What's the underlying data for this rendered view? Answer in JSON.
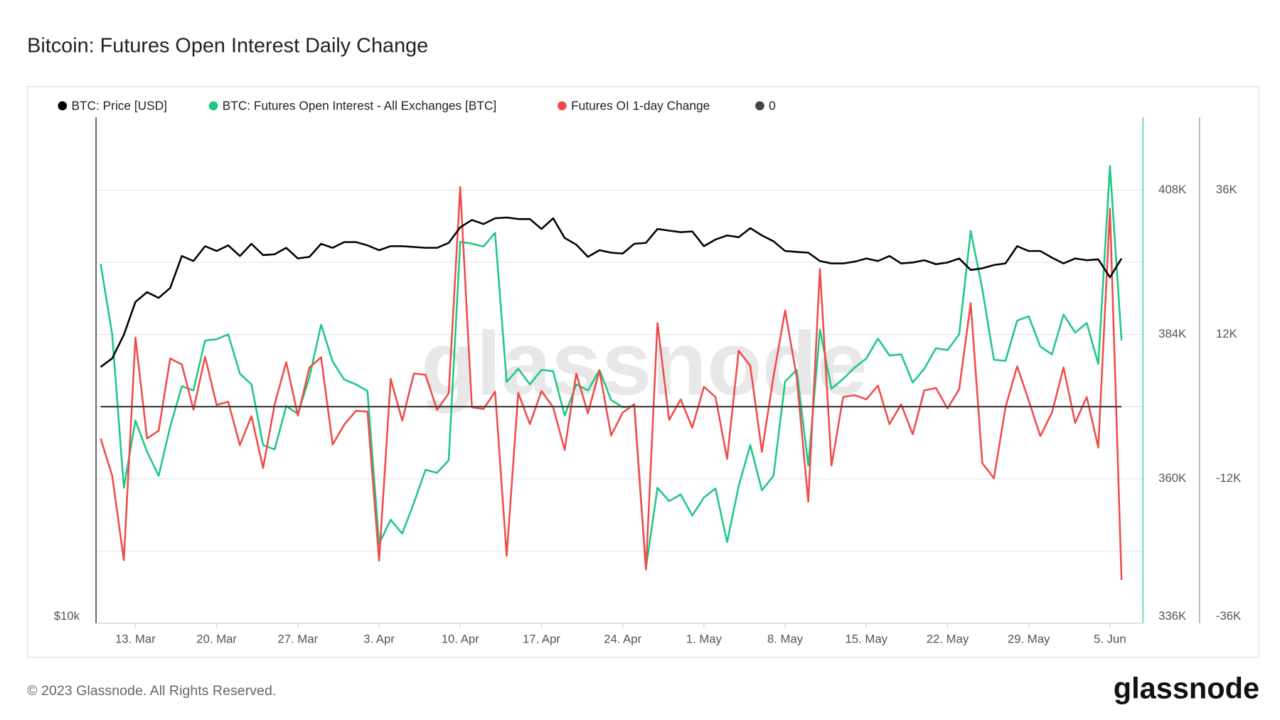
{
  "chart_data": {
    "type": "line",
    "title": "Bitcoin: Futures Open Interest Daily Change",
    "watermark": "glassnode",
    "footer": "© 2023 Glassnode. All Rights Reserved.",
    "brand": "glassnode",
    "categories": [
      null,
      null,
      null,
      "13. Mar",
      null,
      null,
      null,
      null,
      null,
      null,
      "20. Mar",
      null,
      null,
      null,
      null,
      null,
      null,
      "27. Mar",
      null,
      null,
      null,
      null,
      null,
      null,
      "3. Apr",
      null,
      null,
      null,
      null,
      null,
      null,
      "10. Apr",
      null,
      null,
      null,
      null,
      null,
      null,
      "17. Apr",
      null,
      null,
      null,
      null,
      null,
      null,
      "24. Apr",
      null,
      null,
      null,
      null,
      null,
      null,
      "1. May",
      null,
      null,
      null,
      null,
      null,
      null,
      "8. May",
      null,
      null,
      null,
      null,
      null,
      null,
      "15. May",
      null,
      null,
      null,
      null,
      null,
      null,
      "22. May",
      null,
      null,
      null,
      null,
      null,
      null,
      "29. May",
      null,
      null,
      null,
      null,
      null,
      null,
      "5. Jun",
      null
    ],
    "ylim": [
      10000,
      39300
    ],
    "yscale": "log",
    "yticks": [
      {
        "value": 10000,
        "label": "$10k"
      }
    ],
    "y2lim": [
      336000,
      420100
    ],
    "y2ticks": [
      {
        "value": 336000,
        "label": "336K"
      },
      {
        "value": 360000,
        "label": "360K"
      },
      {
        "value": 384000,
        "label": "384K"
      },
      {
        "value": 408000,
        "label": "408K"
      }
    ],
    "y2_minor_ticks": [
      348000,
      372000,
      396000
    ],
    "y3lim": [
      -36000,
      48100
    ],
    "y3ticks": [
      {
        "value": -36000,
        "label": "-36K"
      },
      {
        "value": -12000,
        "label": "-12K"
      },
      {
        "value": 12000,
        "label": "12K"
      },
      {
        "value": 36000,
        "label": "36K"
      }
    ],
    "grid": true,
    "legend": "top-left",
    "series": [
      {
        "name": "BTC: Price [USD]",
        "color": "#000000",
        "axis": "y",
        "values": [
          20000,
          20470,
          21820,
          23850,
          24490,
          24110,
          24770,
          27000,
          26640,
          27730,
          27370,
          27790,
          27000,
          27910,
          27070,
          27130,
          27610,
          26820,
          26940,
          27910,
          27610,
          28040,
          28040,
          27790,
          27430,
          27730,
          27730,
          27670,
          27610,
          27610,
          27980,
          29180,
          29770,
          29440,
          29900,
          29970,
          29840,
          29840,
          29050,
          29900,
          28350,
          27850,
          26940,
          27430,
          27250,
          27180,
          27910,
          27980,
          29050,
          28920,
          28800,
          28860,
          27730,
          28230,
          28550,
          28410,
          29120,
          28550,
          28100,
          27370,
          27300,
          27250,
          26640,
          26470,
          26470,
          26590,
          26820,
          26640,
          27000,
          26470,
          26530,
          26700,
          26410,
          26530,
          26820,
          26000,
          26120,
          26350,
          26470,
          27730,
          27370,
          27370,
          26880,
          26470,
          26820,
          26700,
          26760,
          25490,
          26820
        ]
      },
      {
        "name": "BTC: Futures Open Interest - All Exchanges [BTC]",
        "color": "#1ec883",
        "axis": "y2",
        "values": [
          395700,
          384000,
          358500,
          369700,
          364500,
          360500,
          368700,
          375400,
          374700,
          383000,
          383200,
          384000,
          377500,
          375700,
          365600,
          364900,
          372100,
          370800,
          376900,
          385600,
          379500,
          376500,
          375700,
          374600,
          349200,
          353200,
          350900,
          356000,
          361500,
          361000,
          363100,
          399400,
          399100,
          398600,
          400900,
          376100,
          378300,
          375700,
          378100,
          377900,
          370500,
          375700,
          374700,
          378100,
          373100,
          371900,
          372100,
          345100,
          358500,
          356300,
          357400,
          353900,
          356900,
          358400,
          349500,
          358800,
          365600,
          358100,
          360500,
          376200,
          378100,
          362200,
          384800,
          375000,
          376600,
          378500,
          380000,
          383300,
          380500,
          380700,
          376000,
          378300,
          381700,
          381400,
          384000,
          401200,
          391600,
          379800,
          379600,
          386300,
          387000,
          382000,
          380700,
          387300,
          384300,
          385900,
          379100,
          412000,
          383000
        ]
      },
      {
        "name": "Futures OI 1-day Change",
        "color": "#f04b4b",
        "axis": "y3",
        "values": [
          -5300,
          -11500,
          -25500,
          11500,
          -5300,
          -4000,
          8000,
          7000,
          -500,
          8300,
          300,
          800,
          -6400,
          -1600,
          -10200,
          400,
          7400,
          -1500,
          6500,
          8200,
          -6300,
          -3000,
          -700,
          -800,
          -25600,
          4600,
          -2300,
          5500,
          5300,
          -500,
          2200,
          36500,
          -100,
          -400,
          2500,
          -24800,
          2300,
          -2900,
          2600,
          -100,
          -7200,
          5500,
          -1100,
          6000,
          -4800,
          -1000,
          400,
          -27100,
          13900,
          -2200,
          1200,
          -3500,
          3300,
          1600,
          -8700,
          9300,
          6800,
          -7500,
          5000,
          16000,
          4900,
          -15800,
          22900,
          -9800,
          1600,
          1900,
          1200,
          3500,
          -2900,
          400,
          -4600,
          2700,
          3100,
          -300,
          2900,
          17200,
          -9400,
          -11900,
          -100,
          6700,
          1000,
          -4900,
          -1000,
          6500,
          -2700,
          1600,
          -6800,
          32900,
          -28800
        ]
      },
      {
        "name": "0",
        "color": "#444444",
        "axis": "y3",
        "values": [
          0,
          0,
          0,
          0,
          0,
          0,
          0,
          0,
          0,
          0,
          0,
          0,
          0,
          0,
          0,
          0,
          0,
          0,
          0,
          0,
          0,
          0,
          0,
          0,
          0,
          0,
          0,
          0,
          0,
          0,
          0,
          0,
          0,
          0,
          0,
          0,
          0,
          0,
          0,
          0,
          0,
          0,
          0,
          0,
          0,
          0,
          0,
          0,
          0,
          0,
          0,
          0,
          0,
          0,
          0,
          0,
          0,
          0,
          0,
          0,
          0,
          0,
          0,
          0,
          0,
          0,
          0,
          0,
          0,
          0,
          0,
          0,
          0,
          0,
          0,
          0,
          0,
          0,
          0,
          0,
          0,
          0,
          0,
          0,
          0,
          0,
          0,
          0,
          0
        ]
      }
    ]
  }
}
